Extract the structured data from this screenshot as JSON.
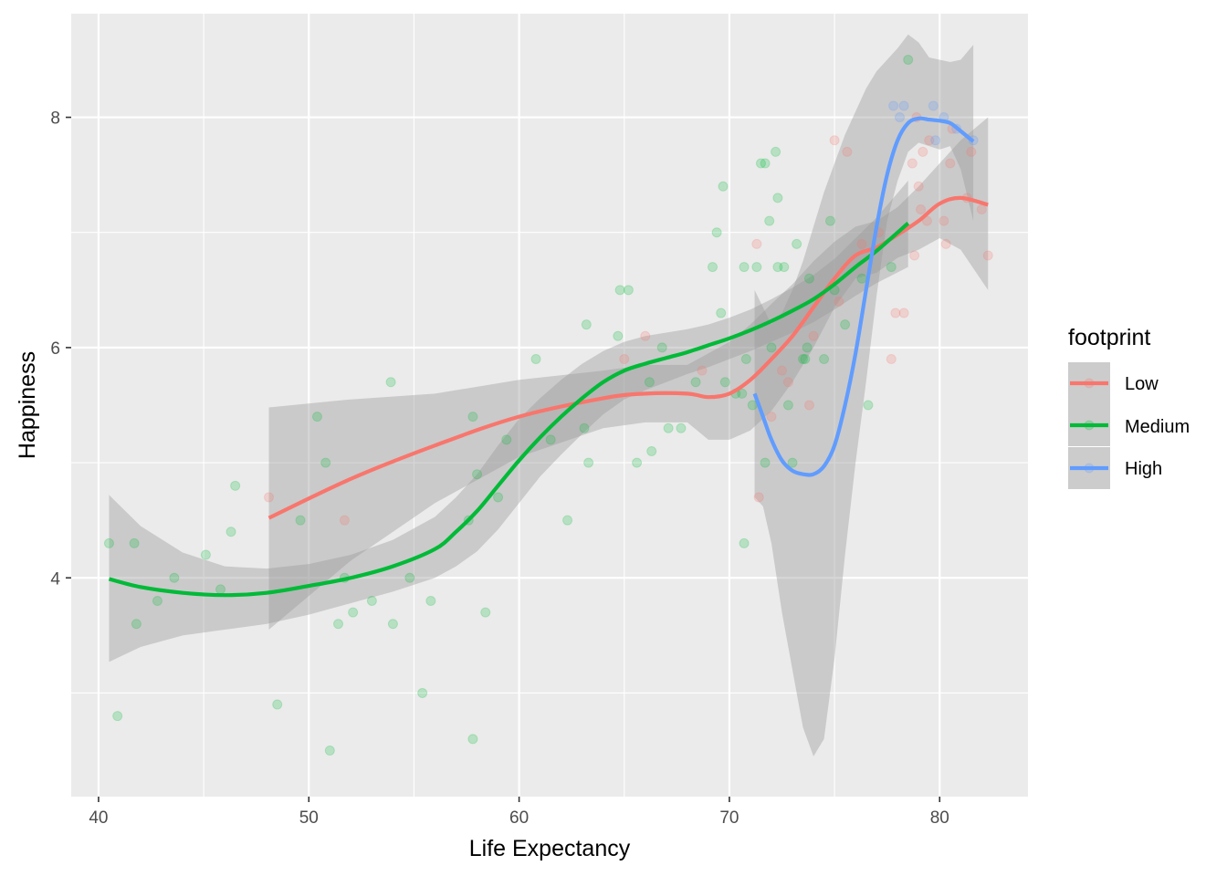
{
  "chart_data": {
    "type": "scatter",
    "title": "",
    "xlabel": "Life Expectancy",
    "ylabel": "Happiness",
    "xlim": [
      38.7,
      84.2
    ],
    "ylim": [
      2.1,
      8.9
    ],
    "x_ticks": [
      40,
      50,
      60,
      70,
      80
    ],
    "y_ticks": [
      4,
      6,
      8
    ],
    "x_tick_labels": [
      "40",
      "50",
      "60",
      "70",
      "80"
    ],
    "y_tick_labels": [
      "4",
      "6",
      "8"
    ],
    "grid": true,
    "legend": {
      "title": "footprint",
      "placement": "right",
      "items": [
        {
          "label": "Low",
          "color": "#F8766D"
        },
        {
          "label": "Medium",
          "color": "#00BA38"
        },
        {
          "label": "High",
          "color": "#619CFF"
        }
      ]
    },
    "series": [
      {
        "name": "Low",
        "color": "#F8766D",
        "points": [
          [
            48.1,
            4.7
          ],
          [
            51.7,
            4.5
          ],
          [
            65.0,
            5.9
          ],
          [
            66.0,
            6.1
          ],
          [
            68.7,
            5.8
          ],
          [
            71.3,
            6.9
          ],
          [
            71.4,
            4.7
          ],
          [
            72.0,
            5.4
          ],
          [
            72.5,
            5.8
          ],
          [
            72.8,
            5.7
          ],
          [
            73.8,
            5.5
          ],
          [
            74.0,
            6.1
          ],
          [
            75.0,
            7.8
          ],
          [
            75.2,
            6.4
          ],
          [
            75.6,
            7.7
          ],
          [
            76.3,
            6.9
          ],
          [
            77.1,
            7.0
          ],
          [
            77.7,
            5.9
          ],
          [
            77.9,
            6.3
          ],
          [
            78.3,
            6.3
          ],
          [
            78.7,
            7.6
          ],
          [
            78.8,
            6.8
          ],
          [
            78.9,
            8.0
          ],
          [
            79.0,
            7.4
          ],
          [
            79.1,
            7.2
          ],
          [
            79.2,
            7.7
          ],
          [
            79.4,
            7.1
          ],
          [
            79.5,
            7.8
          ],
          [
            80.2,
            7.1
          ],
          [
            80.3,
            6.9
          ],
          [
            80.5,
            7.6
          ],
          [
            80.6,
            7.9
          ],
          [
            81.3,
            7.3
          ],
          [
            81.5,
            7.7
          ],
          [
            82.0,
            7.2
          ],
          [
            82.3,
            6.8
          ]
        ],
        "smooth": [
          [
            48.1,
            4.52
          ],
          [
            52,
            4.86
          ],
          [
            56,
            5.15
          ],
          [
            60,
            5.4
          ],
          [
            64,
            5.56
          ],
          [
            66,
            5.6
          ],
          [
            68,
            5.6
          ],
          [
            69,
            5.57
          ],
          [
            70,
            5.6
          ],
          [
            71,
            5.72
          ],
          [
            72,
            5.9
          ],
          [
            73,
            6.1
          ],
          [
            74,
            6.35
          ],
          [
            75,
            6.6
          ],
          [
            76,
            6.8
          ],
          [
            77,
            6.87
          ],
          [
            78,
            6.98
          ],
          [
            79,
            7.1
          ],
          [
            80,
            7.25
          ],
          [
            81,
            7.3
          ],
          [
            82.3,
            7.24
          ]
        ],
        "band": [
          [
            48.1,
            3.55,
            5.48
          ],
          [
            52,
            4.15,
            5.55
          ],
          [
            56,
            4.65,
            5.6
          ],
          [
            60,
            5.05,
            5.72
          ],
          [
            64,
            5.3,
            5.8
          ],
          [
            66,
            5.35,
            5.85
          ],
          [
            68,
            5.35,
            5.85
          ],
          [
            69,
            5.2,
            5.95
          ],
          [
            70,
            5.2,
            6.05
          ],
          [
            71,
            5.28,
            6.2
          ],
          [
            72,
            5.45,
            6.38
          ],
          [
            73,
            5.7,
            6.55
          ],
          [
            74,
            6.0,
            6.75
          ],
          [
            75,
            6.35,
            6.92
          ],
          [
            76,
            6.6,
            7.05
          ],
          [
            77,
            6.65,
            7.1
          ],
          [
            78,
            6.78,
            7.22
          ],
          [
            79,
            6.85,
            7.4
          ],
          [
            80,
            6.95,
            7.6
          ],
          [
            81,
            6.85,
            7.8
          ],
          [
            82.3,
            6.5,
            8.0
          ]
        ]
      },
      {
        "name": "Medium",
        "color": "#00BA38",
        "points": [
          [
            40.5,
            4.3
          ],
          [
            40.9,
            2.8
          ],
          [
            41.7,
            4.3
          ],
          [
            41.8,
            3.6
          ],
          [
            42.8,
            3.8
          ],
          [
            43.6,
            4.0
          ],
          [
            45.1,
            4.2
          ],
          [
            45.8,
            3.9
          ],
          [
            46.3,
            4.4
          ],
          [
            46.5,
            4.8
          ],
          [
            48.5,
            2.9
          ],
          [
            49.6,
            4.5
          ],
          [
            50.4,
            5.4
          ],
          [
            50.8,
            5.0
          ],
          [
            51.0,
            2.5
          ],
          [
            51.4,
            3.6
          ],
          [
            51.7,
            4.0
          ],
          [
            52.1,
            3.7
          ],
          [
            53.0,
            3.8
          ],
          [
            53.9,
            5.7
          ],
          [
            54.0,
            3.6
          ],
          [
            54.8,
            4.0
          ],
          [
            55.4,
            3.0
          ],
          [
            55.8,
            3.8
          ],
          [
            57.6,
            4.5
          ],
          [
            57.8,
            5.4
          ],
          [
            57.8,
            2.6
          ],
          [
            58.0,
            4.9
          ],
          [
            58.4,
            3.7
          ],
          [
            59.0,
            4.7
          ],
          [
            59.4,
            5.2
          ],
          [
            60.8,
            5.9
          ],
          [
            61.5,
            5.2
          ],
          [
            62.3,
            4.5
          ],
          [
            63.2,
            6.2
          ],
          [
            63.3,
            5.0
          ],
          [
            63.1,
            5.3
          ],
          [
            64.7,
            6.1
          ],
          [
            64.8,
            6.5
          ],
          [
            65.2,
            6.5
          ],
          [
            65.6,
            5.0
          ],
          [
            66.2,
            5.7
          ],
          [
            66.3,
            5.1
          ],
          [
            66.8,
            6.0
          ],
          [
            67.1,
            5.3
          ],
          [
            67.7,
            5.3
          ],
          [
            68.4,
            5.7
          ],
          [
            69.2,
            6.7
          ],
          [
            69.4,
            7.0
          ],
          [
            69.6,
            6.3
          ],
          [
            69.7,
            7.4
          ],
          [
            69.8,
            5.7
          ],
          [
            70.3,
            5.6
          ],
          [
            70.6,
            5.6
          ],
          [
            70.7,
            6.7
          ],
          [
            70.7,
            4.3
          ],
          [
            70.8,
            5.9
          ],
          [
            71.1,
            5.5
          ],
          [
            71.3,
            6.7
          ],
          [
            71.5,
            7.6
          ],
          [
            71.7,
            7.6
          ],
          [
            71.7,
            5.0
          ],
          [
            71.9,
            7.1
          ],
          [
            72.0,
            6.0
          ],
          [
            72.2,
            7.7
          ],
          [
            72.3,
            6.7
          ],
          [
            72.3,
            7.3
          ],
          [
            72.6,
            6.7
          ],
          [
            72.8,
            5.5
          ],
          [
            73.0,
            5.0
          ],
          [
            73.2,
            6.9
          ],
          [
            73.5,
            5.9
          ],
          [
            73.6,
            5.9
          ],
          [
            73.7,
            6.0
          ],
          [
            73.8,
            6.6
          ],
          [
            74.5,
            5.9
          ],
          [
            74.8,
            7.1
          ],
          [
            75.0,
            6.5
          ],
          [
            75.5,
            6.2
          ],
          [
            76.3,
            6.6
          ],
          [
            76.6,
            5.5
          ],
          [
            77.7,
            6.7
          ],
          [
            78.5,
            8.5
          ]
        ],
        "smooth": [
          [
            40.5,
            3.99
          ],
          [
            42,
            3.92
          ],
          [
            44,
            3.87
          ],
          [
            46,
            3.85
          ],
          [
            48,
            3.87
          ],
          [
            50,
            3.93
          ],
          [
            52,
            4.0
          ],
          [
            54,
            4.1
          ],
          [
            56,
            4.25
          ],
          [
            57,
            4.4
          ],
          [
            58,
            4.58
          ],
          [
            59,
            4.8
          ],
          [
            60,
            5.02
          ],
          [
            61,
            5.22
          ],
          [
            62,
            5.4
          ],
          [
            63,
            5.56
          ],
          [
            64,
            5.7
          ],
          [
            65,
            5.8
          ],
          [
            66,
            5.86
          ],
          [
            67,
            5.91
          ],
          [
            68,
            5.96
          ],
          [
            69,
            6.02
          ],
          [
            70,
            6.08
          ],
          [
            71,
            6.15
          ],
          [
            72,
            6.23
          ],
          [
            73,
            6.32
          ],
          [
            74,
            6.42
          ],
          [
            75,
            6.55
          ],
          [
            76,
            6.7
          ],
          [
            77,
            6.84
          ],
          [
            78.5,
            7.08
          ]
        ],
        "band": [
          [
            40.5,
            3.27,
            4.72
          ],
          [
            42,
            3.4,
            4.45
          ],
          [
            44,
            3.5,
            4.22
          ],
          [
            46,
            3.55,
            4.1
          ],
          [
            48,
            3.6,
            4.08
          ],
          [
            50,
            3.68,
            4.12
          ],
          [
            52,
            3.78,
            4.2
          ],
          [
            54,
            3.88,
            4.33
          ],
          [
            56,
            4.0,
            4.53
          ],
          [
            57,
            4.1,
            4.7
          ],
          [
            58,
            4.23,
            4.9
          ],
          [
            59,
            4.42,
            5.15
          ],
          [
            60,
            4.65,
            5.38
          ],
          [
            61,
            4.88,
            5.56
          ],
          [
            62,
            5.07,
            5.72
          ],
          [
            63,
            5.25,
            5.86
          ],
          [
            64,
            5.42,
            5.97
          ],
          [
            65,
            5.55,
            6.05
          ],
          [
            66,
            5.63,
            6.1
          ],
          [
            67,
            5.7,
            6.13
          ],
          [
            68,
            5.77,
            6.16
          ],
          [
            69,
            5.83,
            6.2
          ],
          [
            70,
            5.9,
            6.26
          ],
          [
            71,
            5.97,
            6.33
          ],
          [
            72,
            6.05,
            6.42
          ],
          [
            73,
            6.13,
            6.52
          ],
          [
            74,
            6.22,
            6.63
          ],
          [
            75,
            6.33,
            6.77
          ],
          [
            76,
            6.45,
            6.95
          ],
          [
            77,
            6.56,
            7.13
          ],
          [
            78.5,
            6.7,
            7.45
          ]
        ]
      },
      {
        "name": "High",
        "color": "#619CFF",
        "points": [
          [
            77.8,
            8.1
          ],
          [
            78.1,
            8.0
          ],
          [
            78.3,
            8.1
          ],
          [
            79.7,
            8.1
          ],
          [
            79.8,
            7.8
          ],
          [
            80.2,
            8.0
          ],
          [
            80.8,
            7.9
          ],
          [
            81.6,
            7.8
          ]
        ],
        "smooth": [
          [
            71.2,
            5.6
          ],
          [
            71.6,
            5.4
          ],
          [
            72.0,
            5.2
          ],
          [
            72.5,
            5.02
          ],
          [
            73.0,
            4.93
          ],
          [
            73.5,
            4.9
          ],
          [
            74.0,
            4.9
          ],
          [
            74.5,
            4.97
          ],
          [
            75.0,
            5.15
          ],
          [
            75.5,
            5.5
          ],
          [
            76.0,
            5.95
          ],
          [
            76.5,
            6.5
          ],
          [
            77.0,
            7.05
          ],
          [
            77.5,
            7.5
          ],
          [
            78.0,
            7.8
          ],
          [
            78.5,
            7.95
          ],
          [
            79.0,
            7.99
          ],
          [
            79.5,
            7.98
          ],
          [
            80.0,
            7.97
          ],
          [
            80.5,
            7.95
          ],
          [
            81.0,
            7.88
          ],
          [
            81.6,
            7.79
          ]
        ],
        "band": [
          [
            71.2,
            4.7,
            6.5
          ],
          [
            71.6,
            4.62,
            6.35
          ],
          [
            72.0,
            4.3,
            6.2
          ],
          [
            72.5,
            3.7,
            6.3
          ],
          [
            73.0,
            3.2,
            6.5
          ],
          [
            73.5,
            2.7,
            6.75
          ],
          [
            74.0,
            2.45,
            7.05
          ],
          [
            74.5,
            2.6,
            7.35
          ],
          [
            75.0,
            3.3,
            7.6
          ],
          [
            75.5,
            4.2,
            7.85
          ],
          [
            76.0,
            5.0,
            8.05
          ],
          [
            76.5,
            5.7,
            8.25
          ],
          [
            77.0,
            6.45,
            8.4
          ],
          [
            77.5,
            7.1,
            8.5
          ],
          [
            78.0,
            7.45,
            8.6
          ],
          [
            78.5,
            7.7,
            8.72
          ],
          [
            79.0,
            7.78,
            8.65
          ],
          [
            79.5,
            7.75,
            8.52
          ],
          [
            80.0,
            7.72,
            8.5
          ],
          [
            80.5,
            7.75,
            8.48
          ],
          [
            81.0,
            7.55,
            8.5
          ],
          [
            81.6,
            7.1,
            8.63
          ]
        ]
      }
    ]
  }
}
